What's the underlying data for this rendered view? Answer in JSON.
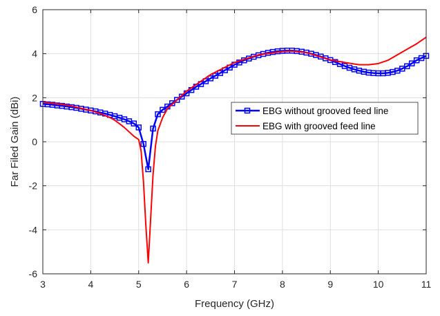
{
  "chart_data": {
    "type": "line",
    "xlabel": "Frequency (GHz)",
    "ylabel": "Far Filed Gain (dBi)",
    "xlim": [
      3,
      11
    ],
    "ylim": [
      -6,
      6
    ],
    "xticks": [
      3,
      4,
      5,
      6,
      7,
      8,
      9,
      10,
      11
    ],
    "yticks": [
      -6,
      -4,
      -2,
      0,
      2,
      4,
      6
    ],
    "xtick_labels": [
      "3",
      "4",
      "5",
      "6",
      "7",
      "8",
      "9",
      "10",
      "11"
    ],
    "ytick_labels": [
      "-6",
      "-4",
      "-2",
      "0",
      "2",
      "4",
      "6"
    ],
    "grid": true,
    "legend_position": "center-right",
    "series": [
      {
        "name": "EBG without grooved feed line",
        "color": "#0000ff",
        "marker": "square",
        "x": [
          3.0,
          3.1,
          3.2,
          3.3,
          3.4,
          3.5,
          3.6,
          3.7,
          3.8,
          3.9,
          4.0,
          4.1,
          4.2,
          4.3,
          4.4,
          4.5,
          4.6,
          4.7,
          4.8,
          4.9,
          5.0,
          5.1,
          5.2,
          5.3,
          5.4,
          5.5,
          5.6,
          5.7,
          5.8,
          5.9,
          6.0,
          6.1,
          6.2,
          6.3,
          6.4,
          6.5,
          6.6,
          6.7,
          6.8,
          6.9,
          7.0,
          7.1,
          7.2,
          7.3,
          7.4,
          7.5,
          7.6,
          7.7,
          7.8,
          7.9,
          8.0,
          8.1,
          8.2,
          8.3,
          8.4,
          8.5,
          8.6,
          8.7,
          8.8,
          8.9,
          9.0,
          9.1,
          9.2,
          9.3,
          9.4,
          9.5,
          9.6,
          9.7,
          9.8,
          9.9,
          10.0,
          10.1,
          10.2,
          10.3,
          10.4,
          10.5,
          10.6,
          10.7,
          10.8,
          10.9,
          11.0
        ],
        "y": [
          1.72,
          1.7,
          1.68,
          1.65,
          1.63,
          1.6,
          1.57,
          1.54,
          1.5,
          1.46,
          1.42,
          1.38,
          1.33,
          1.28,
          1.22,
          1.16,
          1.09,
          1.02,
          0.93,
          0.83,
          0.65,
          -0.1,
          -1.25,
          0.6,
          1.25,
          1.45,
          1.6,
          1.75,
          1.9,
          2.05,
          2.2,
          2.35,
          2.5,
          2.62,
          2.75,
          2.88,
          3.0,
          3.12,
          3.25,
          3.37,
          3.5,
          3.6,
          3.7,
          3.78,
          3.86,
          3.93,
          3.99,
          4.04,
          4.08,
          4.11,
          4.13,
          4.14,
          4.14,
          4.12,
          4.09,
          4.05,
          4.0,
          3.94,
          3.87,
          3.79,
          3.71,
          3.62,
          3.53,
          3.44,
          3.36,
          3.29,
          3.23,
          3.18,
          3.14,
          3.12,
          3.11,
          3.11,
          3.13,
          3.17,
          3.23,
          3.32,
          3.43,
          3.56,
          3.7,
          3.8,
          3.9
        ]
      },
      {
        "name": "EBG with grooved feed line",
        "color": "#ff0000",
        "marker": "none",
        "x": [
          3.0,
          3.2,
          3.4,
          3.6,
          3.8,
          4.0,
          4.2,
          4.4,
          4.5,
          4.6,
          4.7,
          4.8,
          4.9,
          5.0,
          5.05,
          5.1,
          5.15,
          5.2,
          5.25,
          5.3,
          5.35,
          5.4,
          5.5,
          5.6,
          5.8,
          6.0,
          6.5,
          7.0,
          7.5,
          8.0,
          8.2,
          8.5,
          8.8,
          9.0,
          9.3,
          9.6,
          9.8,
          10.0,
          10.2,
          10.4,
          10.6,
          10.8,
          11.0
        ],
        "y": [
          1.8,
          1.75,
          1.7,
          1.62,
          1.52,
          1.42,
          1.28,
          1.1,
          0.98,
          0.82,
          0.65,
          0.45,
          0.25,
          0.1,
          -0.4,
          -1.8,
          -3.8,
          -5.5,
          -3.5,
          -1.5,
          -0.2,
          0.5,
          1.1,
          1.5,
          1.9,
          2.3,
          3.05,
          3.6,
          3.95,
          4.1,
          4.12,
          4.05,
          3.85,
          3.72,
          3.6,
          3.5,
          3.5,
          3.55,
          3.7,
          3.95,
          4.2,
          4.45,
          4.75
        ]
      }
    ]
  }
}
